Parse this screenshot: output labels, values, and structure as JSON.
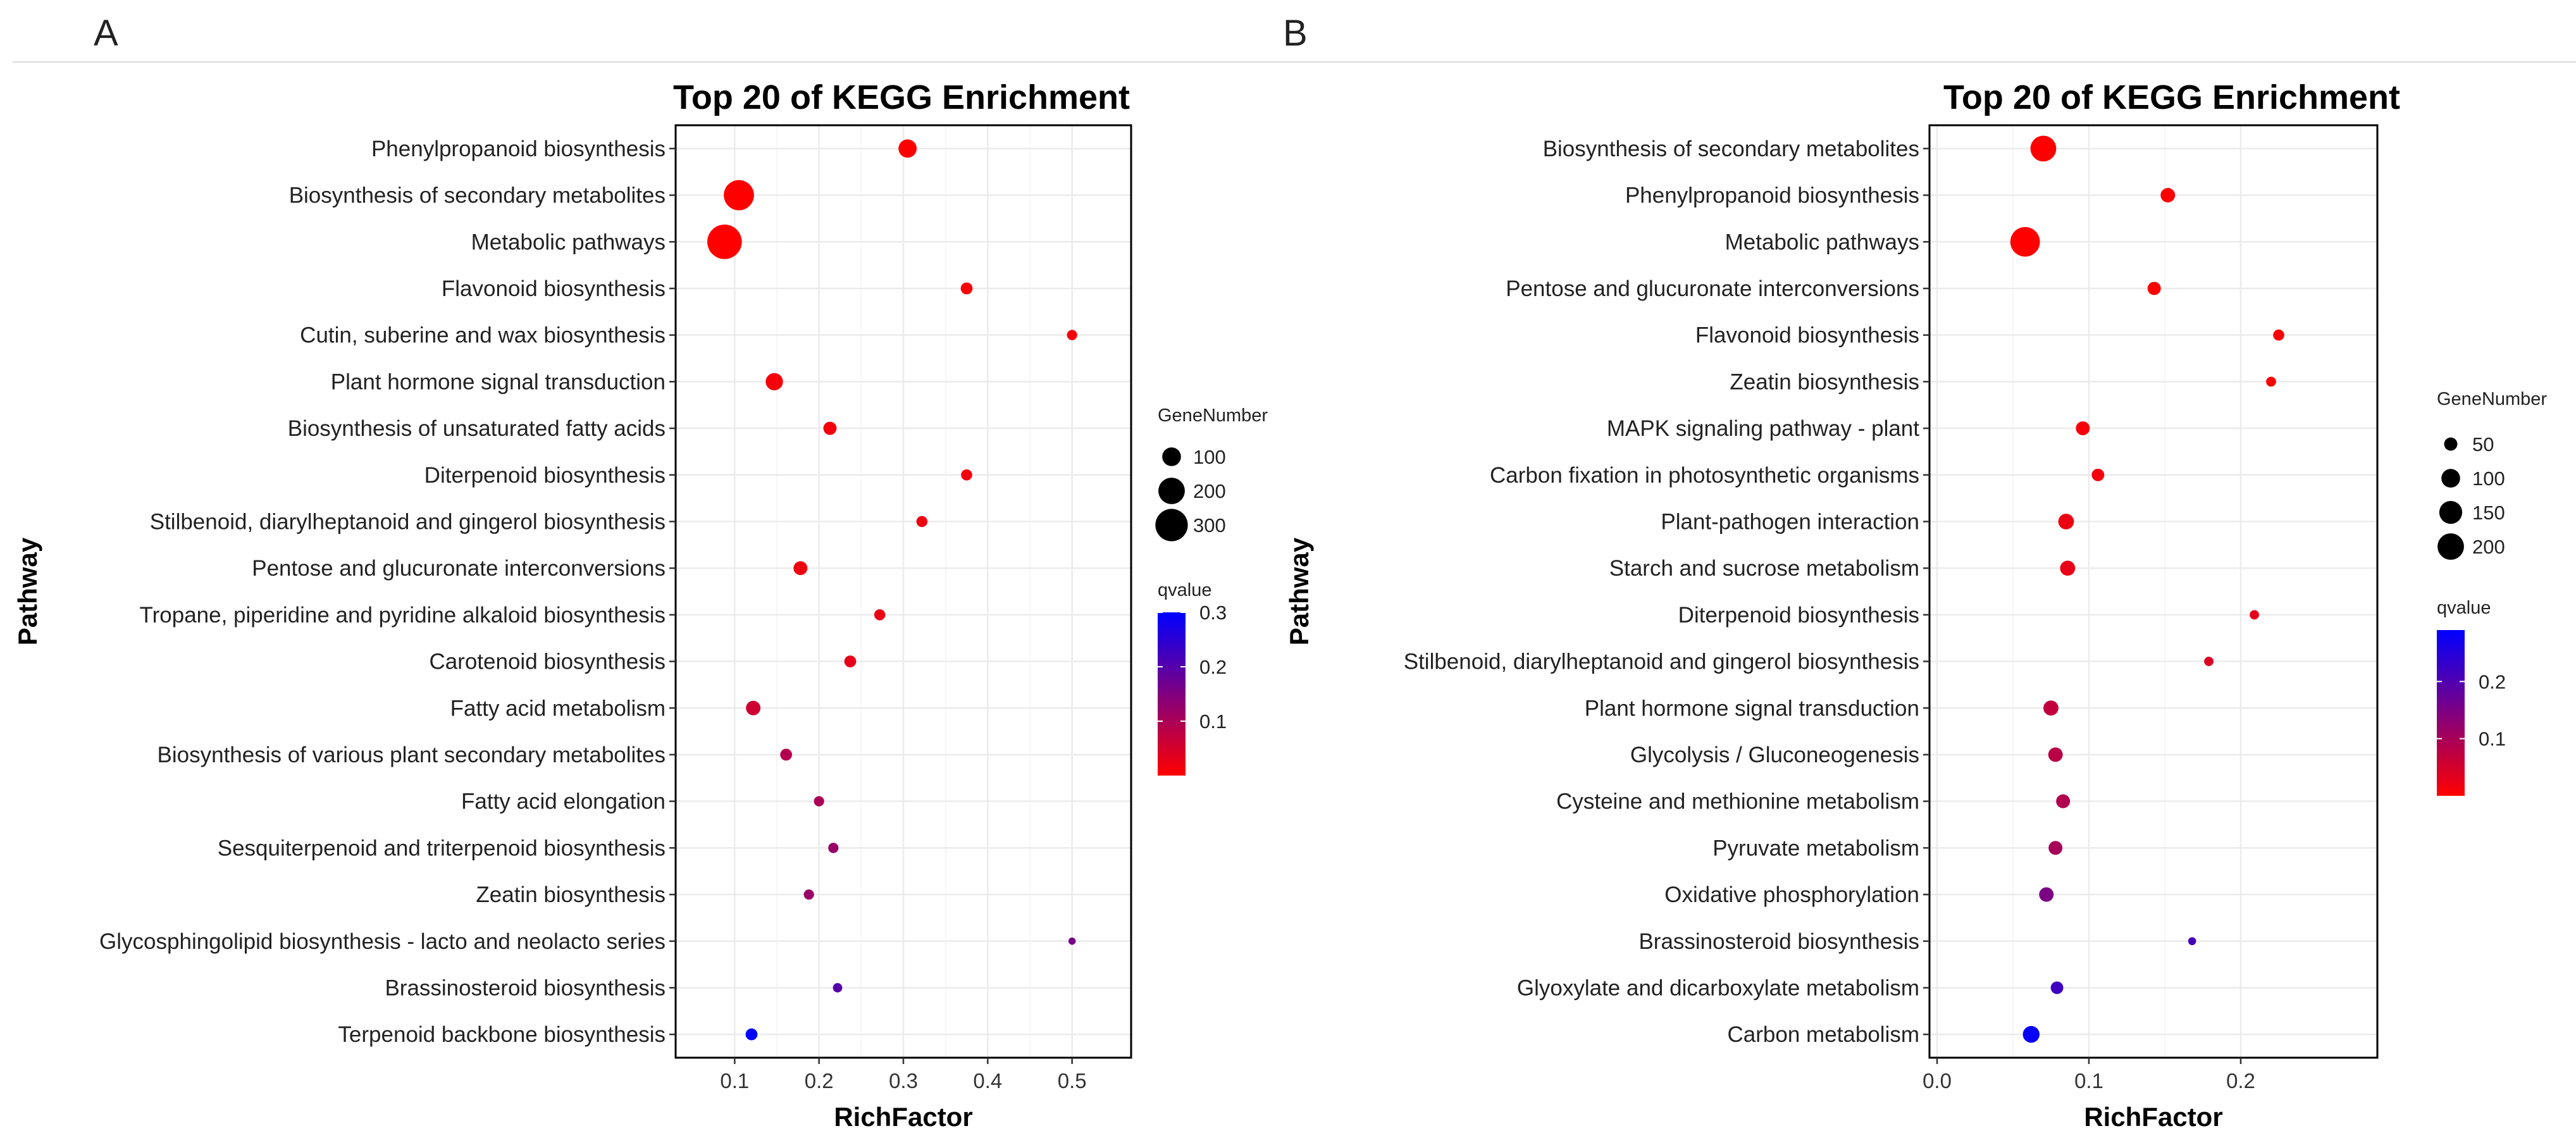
{
  "chart_data": [
    {
      "panel": "A",
      "type": "scatter",
      "title": "Top 20 of KEGG Enrichment",
      "xlabel": "RichFactor",
      "ylabel": "Pathway",
      "xlim": [
        0.03,
        0.57
      ],
      "xticks": [
        0.1,
        0.2,
        0.3,
        0.4,
        0.5
      ],
      "xtick_labels": [
        "0.1",
        "0.2",
        "0.3",
        "0.4",
        "0.5"
      ],
      "grid": true,
      "pathways": [
        {
          "name": "Phenylpropanoid biosynthesis",
          "rich_factor": 0.305,
          "gene_number": 95,
          "qvalue": 0.0
        },
        {
          "name": "Biosynthesis of secondary metabolites",
          "rich_factor": 0.105,
          "gene_number": 260,
          "qvalue": 0.0
        },
        {
          "name": "Metabolic pathways",
          "rich_factor": 0.088,
          "gene_number": 340,
          "qvalue": 0.0
        },
        {
          "name": "Flavonoid biosynthesis",
          "rich_factor": 0.375,
          "gene_number": 40,
          "qvalue": 0.005
        },
        {
          "name": "Cutin, suberine and wax biosynthesis",
          "rich_factor": 0.5,
          "gene_number": 30,
          "qvalue": 0.01
        },
        {
          "name": "Plant hormone signal transduction",
          "rich_factor": 0.147,
          "gene_number": 85,
          "qvalue": 0.01
        },
        {
          "name": "Biosynthesis of unsaturated fatty acids",
          "rich_factor": 0.213,
          "gene_number": 50,
          "qvalue": 0.015
        },
        {
          "name": "Diterpenoid biosynthesis",
          "rich_factor": 0.375,
          "gene_number": 35,
          "qvalue": 0.015
        },
        {
          "name": "Stilbenoid, diarylheptanoid and gingerol biosynthesis",
          "rich_factor": 0.322,
          "gene_number": 35,
          "qvalue": 0.02
        },
        {
          "name": "Pentose and glucuronate interconversions",
          "rich_factor": 0.178,
          "gene_number": 55,
          "qvalue": 0.02
        },
        {
          "name": "Tropane, piperidine and pyridine alkaloid biosynthesis",
          "rich_factor": 0.272,
          "gene_number": 35,
          "qvalue": 0.025
        },
        {
          "name": "Carotenoid biosynthesis",
          "rich_factor": 0.237,
          "gene_number": 40,
          "qvalue": 0.03
        },
        {
          "name": "Fatty acid metabolism",
          "rich_factor": 0.122,
          "gene_number": 60,
          "qvalue": 0.06
        },
        {
          "name": "Biosynthesis of various plant secondary metabolites",
          "rich_factor": 0.161,
          "gene_number": 40,
          "qvalue": 0.09
        },
        {
          "name": "Fatty acid elongation",
          "rich_factor": 0.2,
          "gene_number": 30,
          "qvalue": 0.1
        },
        {
          "name": "Sesquiterpenoid and triterpenoid biosynthesis",
          "rich_factor": 0.217,
          "gene_number": 30,
          "qvalue": 0.12
        },
        {
          "name": "Zeatin biosynthesis",
          "rich_factor": 0.188,
          "gene_number": 30,
          "qvalue": 0.12
        },
        {
          "name": "Glycosphingolipid biosynthesis - lacto and neolacto series",
          "rich_factor": 0.5,
          "gene_number": 15,
          "qvalue": 0.16
        },
        {
          "name": "Brassinosteroid biosynthesis",
          "rich_factor": 0.222,
          "gene_number": 25,
          "qvalue": 0.2
        },
        {
          "name": "Terpenoid backbone biosynthesis",
          "rich_factor": 0.12,
          "gene_number": 40,
          "qvalue": 0.3
        }
      ],
      "size_legend": {
        "title": "GeneNumber",
        "values": [
          100,
          200,
          300
        ],
        "labels": [
          "100",
          "200",
          "300"
        ]
      },
      "color_legend": {
        "title": "qvalue",
        "min": 0.0,
        "max": 0.3,
        "ticks": [
          0.1,
          0.2,
          0.3
        ],
        "tick_labels": [
          "0.1",
          "0.2",
          "0.3"
        ],
        "low_color": "#ff0000",
        "high_color": "#0000ff"
      }
    },
    {
      "panel": "B",
      "type": "scatter",
      "title": "Top 20 of KEGG Enrichment",
      "xlabel": "RichFactor",
      "ylabel": "Pathway",
      "xlim": [
        -0.005,
        0.29
      ],
      "xticks": [
        0.0,
        0.1,
        0.2
      ],
      "xtick_labels": [
        "0.0",
        "0.1",
        "0.2"
      ],
      "grid": true,
      "pathways": [
        {
          "name": "Biosynthesis of secondary metabolites",
          "rich_factor": 0.07,
          "gene_number": 190,
          "qvalue": 0.0
        },
        {
          "name": "Phenylpropanoid biosynthesis",
          "rich_factor": 0.152,
          "gene_number": 60,
          "qvalue": 0.0
        },
        {
          "name": "Metabolic pathways",
          "rich_factor": 0.058,
          "gene_number": 250,
          "qvalue": 0.0
        },
        {
          "name": "Pentose and glucuronate interconversions",
          "rich_factor": 0.143,
          "gene_number": 50,
          "qvalue": 0.0
        },
        {
          "name": "Flavonoid biosynthesis",
          "rich_factor": 0.225,
          "gene_number": 35,
          "qvalue": 0.005
        },
        {
          "name": "Zeatin biosynthesis",
          "rich_factor": 0.22,
          "gene_number": 28,
          "qvalue": 0.005
        },
        {
          "name": "MAPK signaling pathway - plant",
          "rich_factor": 0.096,
          "gene_number": 55,
          "qvalue": 0.01
        },
        {
          "name": "Carbon fixation in photosynthetic organisms",
          "rich_factor": 0.106,
          "gene_number": 45,
          "qvalue": 0.015
        },
        {
          "name": "Plant-pathogen interaction",
          "rich_factor": 0.085,
          "gene_number": 70,
          "qvalue": 0.02
        },
        {
          "name": "Starch and sucrose metabolism",
          "rich_factor": 0.086,
          "gene_number": 65,
          "qvalue": 0.025
        },
        {
          "name": "Diterpenoid biosynthesis",
          "rich_factor": 0.209,
          "gene_number": 25,
          "qvalue": 0.03
        },
        {
          "name": "Stilbenoid, diarylheptanoid and gingerol biosynthesis",
          "rich_factor": 0.179,
          "gene_number": 25,
          "qvalue": 0.04
        },
        {
          "name": "Plant hormone signal transduction",
          "rich_factor": 0.075,
          "gene_number": 65,
          "qvalue": 0.07
        },
        {
          "name": "Glycolysis / Gluconeogenesis",
          "rich_factor": 0.078,
          "gene_number": 60,
          "qvalue": 0.08
        },
        {
          "name": "Cysteine and methionine metabolism",
          "rich_factor": 0.083,
          "gene_number": 55,
          "qvalue": 0.09
        },
        {
          "name": "Pyruvate metabolism",
          "rich_factor": 0.078,
          "gene_number": 55,
          "qvalue": 0.1
        },
        {
          "name": "Oxidative phosphorylation",
          "rich_factor": 0.072,
          "gene_number": 60,
          "qvalue": 0.15
        },
        {
          "name": "Brassinosteroid biosynthesis",
          "rich_factor": 0.168,
          "gene_number": 18,
          "qvalue": 0.21
        },
        {
          "name": "Glyoxylate and dicarboxylate metabolism",
          "rich_factor": 0.079,
          "gene_number": 45,
          "qvalue": 0.22
        },
        {
          "name": "Carbon metabolism",
          "rich_factor": 0.062,
          "gene_number": 80,
          "qvalue": 0.28
        }
      ],
      "size_legend": {
        "title": "GeneNumber",
        "values": [
          50,
          100,
          150,
          200
        ],
        "labels": [
          "50",
          "100",
          "150",
          "200"
        ]
      },
      "color_legend": {
        "title": "qvalue",
        "min": 0.0,
        "max": 0.29,
        "ticks": [
          0.1,
          0.2
        ],
        "tick_labels": [
          "0.1",
          "0.2"
        ],
        "low_color": "#ff0000",
        "high_color": "#0000ff"
      }
    }
  ]
}
